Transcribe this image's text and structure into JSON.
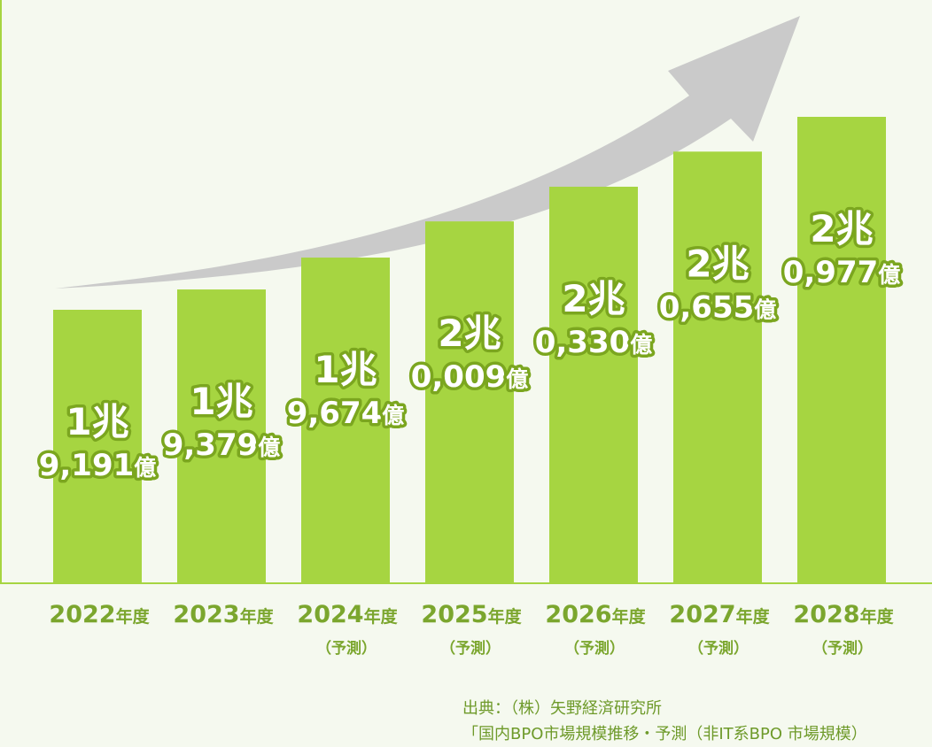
{
  "chart_data": {
    "type": "bar",
    "categories": [
      "2022",
      "2023",
      "2024",
      "2025",
      "2026",
      "2027",
      "2028"
    ],
    "category_suffix": "年度",
    "sub_labels": [
      "",
      "",
      "（予測）",
      "（予測）",
      "（予測）",
      "（予測）",
      "（予測）"
    ],
    "values_oku": [
      19191,
      19379,
      19674,
      20009,
      20330,
      20655,
      20977
    ],
    "value_labels": [
      {
        "cho": "1兆",
        "oku": "9,191",
        "unit": "億"
      },
      {
        "cho": "1兆",
        "oku": "9,379",
        "unit": "億"
      },
      {
        "cho": "1兆",
        "oku": "9,674",
        "unit": "億"
      },
      {
        "cho": "2兆",
        "oku": "0,009",
        "unit": "億"
      },
      {
        "cho": "2兆",
        "oku": "0,330",
        "unit": "億"
      },
      {
        "cho": "2兆",
        "oku": "0,655",
        "unit": "億"
      },
      {
        "cho": "2兆",
        "oku": "0,977",
        "unit": "億"
      }
    ],
    "trend_arrow": true,
    "colors": {
      "bar": "#a6d541",
      "label_fill": "#ffffff",
      "label_outline": "#7ba61f",
      "axis_text": "#7ba62e",
      "arrow": "#cacaca",
      "background": "#f5f9ef",
      "axis_line": "#a6d541"
    }
  },
  "source": {
    "line1": "出典：（株）矢野経済研究所",
    "line2": "「国内BPO市場規模推移・予測（非IT系BPO 市場規模）"
  }
}
